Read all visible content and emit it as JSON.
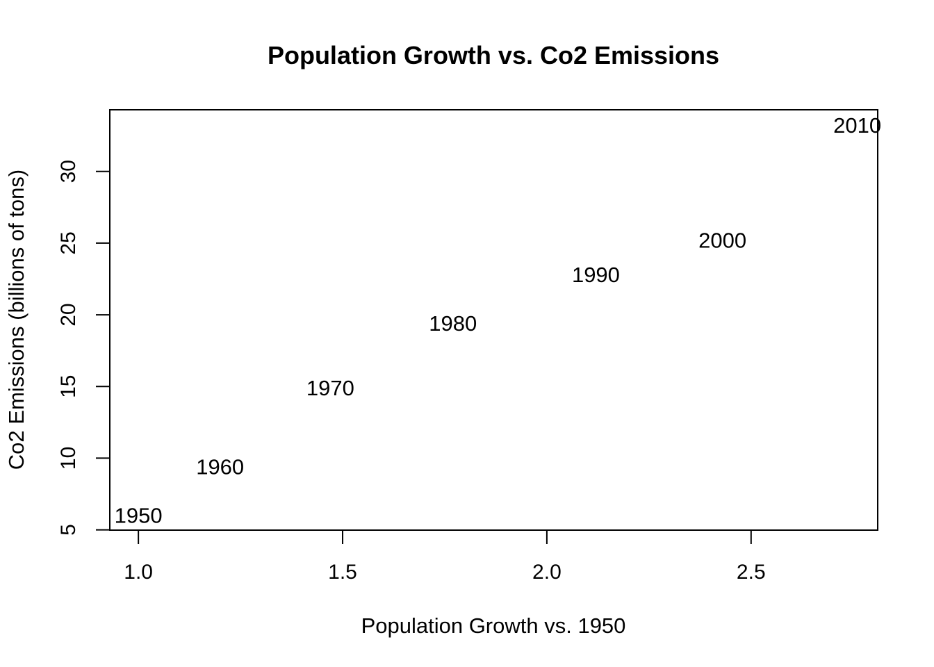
{
  "chart_data": {
    "type": "scatter",
    "title": "Population Growth vs. Co2 Emissions",
    "xlabel": "Population Growth vs. 1950",
    "ylabel": "Co2 Emissions (billions of tons)",
    "xlim": [
      0.93,
      2.81
    ],
    "ylim": [
      4.98,
      34.3
    ],
    "x_ticks": [
      1.0,
      1.5,
      2.0,
      2.5
    ],
    "x_tick_labels": [
      "1.0",
      "1.5",
      "2.0",
      "2.5"
    ],
    "y_ticks": [
      5,
      10,
      15,
      20,
      25,
      30
    ],
    "y_tick_labels": [
      "5",
      "10",
      "15",
      "20",
      "25",
      "30"
    ],
    "grid": false,
    "marker": "text-label",
    "points": [
      {
        "label": "1950",
        "x": 1.0,
        "y": 6.0
      },
      {
        "label": "1960",
        "x": 1.2,
        "y": 9.4
      },
      {
        "label": "1970",
        "x": 1.47,
        "y": 14.9
      },
      {
        "label": "1980",
        "x": 1.77,
        "y": 19.4
      },
      {
        "label": "1990",
        "x": 2.12,
        "y": 22.8
      },
      {
        "label": "2000",
        "x": 2.43,
        "y": 25.2
      },
      {
        "label": "2010",
        "x": 2.76,
        "y": 33.2
      }
    ]
  }
}
